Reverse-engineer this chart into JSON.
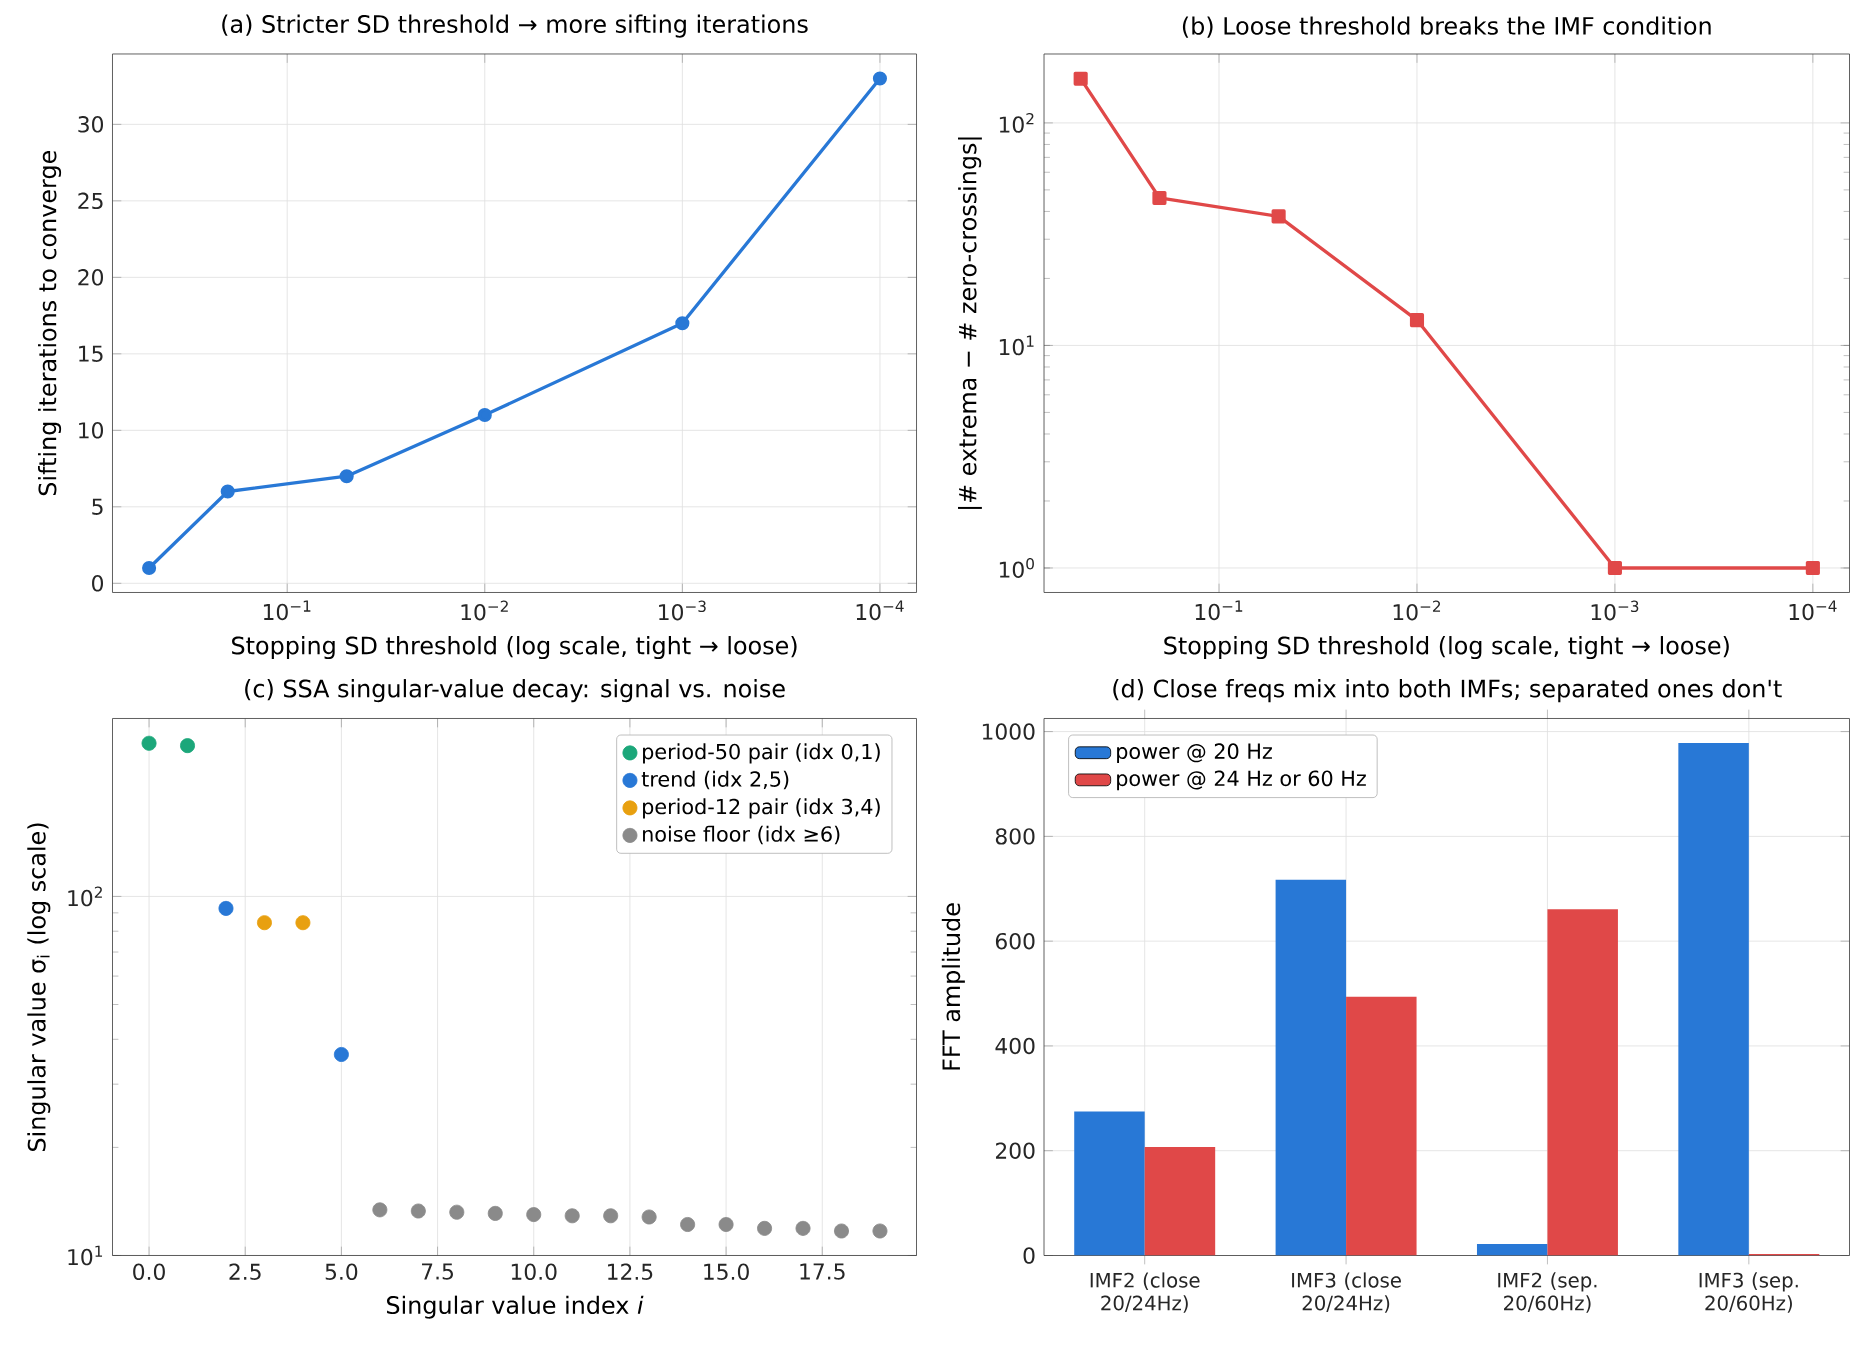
{
  "chart_data": [
    {
      "type": "line",
      "title": "(a) Stricter SD threshold → more sifting iterations",
      "xlabel": "Stopping SD threshold (log scale, tight → loose)",
      "ylabel": "Sifting iterations to converge",
      "log": "x",
      "grid": true,
      "marker": "circle",
      "line_style": "solid",
      "x": [
        0.5,
        0.2,
        0.05,
        0.01,
        0.001,
        0.0001
      ],
      "xlim": [
        0.766,
        6.53e-05
      ],
      "xticks": [
        {
          "value": 0.1,
          "label": "10$^{−1}$"
        },
        {
          "value": 0.01,
          "label": "10$^{−2}$"
        },
        {
          "value": 0.001,
          "label": "10$^{−3}$"
        },
        {
          "value": 0.0001,
          "label": "10$^{−4}$"
        }
      ],
      "ylim": [
        -0.6,
        34.6
      ],
      "yticks": [
        0,
        5,
        10,
        15,
        20,
        25,
        30
      ],
      "series": [
        {
          "color": "#2878d6",
          "values": [
            1,
            6,
            7,
            11,
            17,
            33
          ]
        }
      ]
    },
    {
      "type": "line",
      "title": "(b) Loose threshold breaks the IMF condition",
      "xlabel": "Stopping SD threshold (log scale, tight → loose)",
      "ylabel": "|# extrema − # zero-crossings|",
      "log": "xy",
      "grid": true,
      "marker": "square",
      "line_style": "solid",
      "x": [
        0.5,
        0.2,
        0.05,
        0.01,
        0.001,
        0.0001
      ],
      "xlim": [
        0.766,
        6.53e-05
      ],
      "xticks": [
        {
          "value": 0.1,
          "label": "10$^{−1}$"
        },
        {
          "value": 0.01,
          "label": "10$^{−2}$"
        },
        {
          "value": 0.001,
          "label": "10$^{−3}$"
        },
        {
          "value": 0.0001,
          "label": "10$^{−4}$"
        }
      ],
      "ylim": [
        0.776,
        204
      ],
      "yticks": [
        {
          "value": 1,
          "label": "10$^{0}$"
        },
        {
          "value": 10,
          "label": "10$^{1}$"
        },
        {
          "value": 100,
          "label": "10$^{2}$"
        }
      ],
      "series": [
        {
          "color": "#e04848",
          "values": [
            158,
            46,
            38,
            13,
            1,
            1
          ]
        }
      ]
    },
    {
      "type": "scatter",
      "title": "(c) SSA singular-value decay: signal vs. noise",
      "xlabel": "Singular value index *i*",
      "ylabel": "Singular value σ$_{i}$ (log scale)",
      "log": "y",
      "grid": true,
      "marker": "circle",
      "legend": "top right",
      "xlim": [
        -0.95,
        19.95
      ],
      "xticks": [
        {
          "value": 0,
          "label": "0.0"
        },
        {
          "value": 2.5,
          "label": "2.5"
        },
        {
          "value": 5,
          "label": "5.0"
        },
        {
          "value": 7.5,
          "label": "7.5"
        },
        {
          "value": 10,
          "label": "10.0"
        },
        {
          "value": 12.5,
          "label": "12.5"
        },
        {
          "value": 15,
          "label": "15.0"
        },
        {
          "value": 17.5,
          "label": "17.5"
        }
      ],
      "ylim": [
        10,
        313
      ],
      "yticks": [
        {
          "value": 10,
          "label": "10$^{1}$"
        },
        {
          "value": 100,
          "label": "10$^{2}$"
        }
      ],
      "series": [
        {
          "name": "period-50 pair (idx 0,1)",
          "color": "#1ca77a",
          "x": [
            0,
            1
          ],
          "values": [
            267,
            263
          ]
        },
        {
          "name": "trend (idx 2,5)",
          "color": "#2878d6",
          "x": [
            2,
            5
          ],
          "values": [
            92.6,
            36.3
          ]
        },
        {
          "name": "period-12 pair (idx 3,4)",
          "color": "#e8a010",
          "x": [
            3,
            4
          ],
          "values": [
            84.5,
            84.5
          ]
        },
        {
          "name": "noise floor (idx ≥6)",
          "color": "#8a8a8a",
          "x": [
            6,
            7,
            8,
            9,
            10,
            11,
            12,
            13,
            14,
            15,
            16,
            17,
            18,
            19
          ],
          "values": [
            13.4,
            13.3,
            13.2,
            13.1,
            13.0,
            12.9,
            12.9,
            12.8,
            12.2,
            12.2,
            11.9,
            11.9,
            11.7,
            11.7
          ]
        }
      ]
    },
    {
      "type": "bar",
      "title": "(d) Close freqs mix into both IMFs; separated ones don't",
      "ylabel": "FFT amplitude",
      "grid": true,
      "legend": "top left",
      "categories": [
        "IMF2 (close 20/24Hz)",
        "IMF3 (close 20/24Hz)",
        "IMF2 (sep. 20/60Hz)",
        "IMF3 (sep. 20/60Hz)"
      ],
      "ylim": [
        0,
        1025
      ],
      "yticks": [
        0,
        200,
        400,
        600,
        800,
        1000
      ],
      "series": [
        {
          "name": "power @ 20 Hz",
          "color": "#2878d6",
          "values": [
            275,
            717,
            22,
            978
          ]
        },
        {
          "name": "power @ 24 Hz or 60 Hz",
          "color": "#e04848",
          "values": [
            207,
            494,
            661,
            3
          ]
        }
      ]
    }
  ]
}
